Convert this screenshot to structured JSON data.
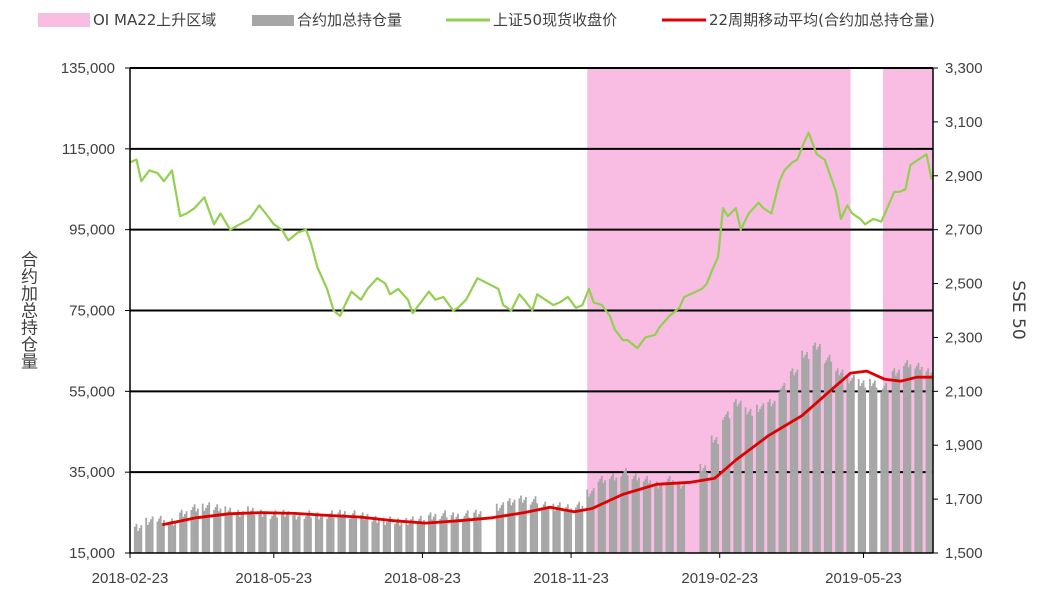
{
  "chart_data": {
    "type": "bar+line",
    "x_start": "2018-02-23",
    "x_end": "2019-07-05",
    "x_tick_labels": [
      "2018-02-23",
      "2018-05-23",
      "2018-08-23",
      "2018-11-23",
      "2019-02-23",
      "2019-05-23"
    ],
    "left_axis": {
      "label": "合约加总持仓量",
      "ylim": [
        15000,
        135000
      ],
      "ticks": [
        15000,
        35000,
        55000,
        75000,
        95000,
        115000,
        135000
      ],
      "tick_labels": [
        "15,000",
        "35,000",
        "55,000",
        "75,000",
        "95,000",
        "115,000",
        "135,000"
      ]
    },
    "right_axis": {
      "label": "SSE 50",
      "ylim": [
        1500,
        3300
      ],
      "ticks": [
        1500,
        1700,
        1900,
        2100,
        2300,
        2500,
        2700,
        2900,
        3100,
        3300
      ],
      "tick_labels": [
        "1,500",
        "1,700",
        "1,900",
        "2,100",
        "2,300",
        "2,500",
        "2,700",
        "2,900",
        "3,100",
        "3,300"
      ]
    },
    "grid": "horizontal",
    "legend_position": "top",
    "legend": [
      {
        "label": "OI MA22上升区域",
        "kind": "area",
        "color": "#f9bde4"
      },
      {
        "label": "合约加总持仓量",
        "kind": "bar",
        "color": "#a6a6a6"
      },
      {
        "label": "上证50现货收盘价",
        "kind": "line",
        "color": "#92d050"
      },
      {
        "label": "22周期移动平均(合约加总持仓量)",
        "kind": "line",
        "color": "#e00000"
      }
    ],
    "shaded_regions": [
      {
        "start": "2018-12-03",
        "end": "2019-05-15"
      },
      {
        "start": "2019-06-04",
        "end": "2019-07-05"
      }
    ],
    "series": [
      {
        "name": "合约加总持仓量",
        "type": "bar",
        "color": "#a6a6a6",
        "points": [
          [
            "2018-02-26",
            21500
          ],
          [
            "2018-03-05",
            23000
          ],
          [
            "2018-03-12",
            23500
          ],
          [
            "2018-03-19",
            22500
          ],
          [
            "2018-03-26",
            25000
          ],
          [
            "2018-04-02",
            26000
          ],
          [
            "2018-04-09",
            26500
          ],
          [
            "2018-04-16",
            26000
          ],
          [
            "2018-04-23",
            25500
          ],
          [
            "2018-04-30",
            25000
          ],
          [
            "2018-05-07",
            25500
          ],
          [
            "2018-05-14",
            25000
          ],
          [
            "2018-05-21",
            24500
          ],
          [
            "2018-05-28",
            25000
          ],
          [
            "2018-06-04",
            24000
          ],
          [
            "2018-06-11",
            24500
          ],
          [
            "2018-06-18",
            24000
          ],
          [
            "2018-06-25",
            24500
          ],
          [
            "2018-07-02",
            25000
          ],
          [
            "2018-07-09",
            24500
          ],
          [
            "2018-07-16",
            24000
          ],
          [
            "2018-07-23",
            23500
          ],
          [
            "2018-07-30",
            23000
          ],
          [
            "2018-08-06",
            22500
          ],
          [
            "2018-08-13",
            23000
          ],
          [
            "2018-08-20",
            23500
          ],
          [
            "2018-08-27",
            24000
          ],
          [
            "2018-09-03",
            24500
          ],
          [
            "2018-09-10",
            24000
          ],
          [
            "2018-09-17",
            24500
          ],
          [
            "2018-09-24",
            25000
          ],
          [
            "2018-10-08",
            26500
          ],
          [
            "2018-10-15",
            27500
          ],
          [
            "2018-10-22",
            28500
          ],
          [
            "2018-10-29",
            28000
          ],
          [
            "2018-11-05",
            27000
          ],
          [
            "2018-11-12",
            26500
          ],
          [
            "2018-11-19",
            26000
          ],
          [
            "2018-11-26",
            27000
          ],
          [
            "2018-12-03",
            30000
          ],
          [
            "2018-12-10",
            33000
          ],
          [
            "2018-12-17",
            34000
          ],
          [
            "2018-12-24",
            35000
          ],
          [
            "2018-12-31",
            34000
          ],
          [
            "2019-01-07",
            33000
          ],
          [
            "2019-01-14",
            32000
          ],
          [
            "2019-01-21",
            33000
          ],
          [
            "2019-01-28",
            32000
          ],
          [
            "2019-02-11",
            36000
          ],
          [
            "2019-02-18",
            43000
          ],
          [
            "2019-02-25",
            49000
          ],
          [
            "2019-03-04",
            52000
          ],
          [
            "2019-03-11",
            50000
          ],
          [
            "2019-03-18",
            51000
          ],
          [
            "2019-03-25",
            52000
          ],
          [
            "2019-04-01",
            56000
          ],
          [
            "2019-04-08",
            60000
          ],
          [
            "2019-04-15",
            64000
          ],
          [
            "2019-04-22",
            66000
          ],
          [
            "2019-04-29",
            63000
          ],
          [
            "2019-05-06",
            60000
          ],
          [
            "2019-05-13",
            58000
          ],
          [
            "2019-05-20",
            57000
          ],
          [
            "2019-05-27",
            57000
          ],
          [
            "2019-06-03",
            56000
          ],
          [
            "2019-06-10",
            60000
          ],
          [
            "2019-06-17",
            62000
          ],
          [
            "2019-06-24",
            61000
          ],
          [
            "2019-07-01",
            60000
          ]
        ]
      },
      {
        "name": "上证50现货收盘价",
        "type": "line",
        "axis": "right",
        "color": "#92d050",
        "points": [
          [
            "2018-02-23",
            2950
          ],
          [
            "2018-02-27",
            2960
          ],
          [
            "2018-03-02",
            2880
          ],
          [
            "2018-03-07",
            2920
          ],
          [
            "2018-03-12",
            2910
          ],
          [
            "2018-03-16",
            2880
          ],
          [
            "2018-03-21",
            2920
          ],
          [
            "2018-03-26",
            2750
          ],
          [
            "2018-03-30",
            2760
          ],
          [
            "2018-04-04",
            2780
          ],
          [
            "2018-04-10",
            2820
          ],
          [
            "2018-04-16",
            2720
          ],
          [
            "2018-04-20",
            2760
          ],
          [
            "2018-04-26",
            2700
          ],
          [
            "2018-05-02",
            2720
          ],
          [
            "2018-05-08",
            2740
          ],
          [
            "2018-05-14",
            2790
          ],
          [
            "2018-05-18",
            2760
          ],
          [
            "2018-05-23",
            2720
          ],
          [
            "2018-05-28",
            2700
          ],
          [
            "2018-06-01",
            2660
          ],
          [
            "2018-06-07",
            2690
          ],
          [
            "2018-06-12",
            2700
          ],
          [
            "2018-06-15",
            2650
          ],
          [
            "2018-06-19",
            2560
          ],
          [
            "2018-06-25",
            2480
          ],
          [
            "2018-06-29",
            2400
          ],
          [
            "2018-07-03",
            2380
          ],
          [
            "2018-07-06",
            2420
          ],
          [
            "2018-07-10",
            2470
          ],
          [
            "2018-07-16",
            2440
          ],
          [
            "2018-07-20",
            2480
          ],
          [
            "2018-07-26",
            2520
          ],
          [
            "2018-07-31",
            2500
          ],
          [
            "2018-08-03",
            2460
          ],
          [
            "2018-08-08",
            2480
          ],
          [
            "2018-08-14",
            2440
          ],
          [
            "2018-08-17",
            2390
          ],
          [
            "2018-08-22",
            2430
          ],
          [
            "2018-08-27",
            2470
          ],
          [
            "2018-08-31",
            2440
          ],
          [
            "2018-09-05",
            2450
          ],
          [
            "2018-09-11",
            2400
          ],
          [
            "2018-09-14",
            2410
          ],
          [
            "2018-09-19",
            2440
          ],
          [
            "2018-09-26",
            2520
          ],
          [
            "2018-10-09",
            2480
          ],
          [
            "2018-10-12",
            2420
          ],
          [
            "2018-10-17",
            2400
          ],
          [
            "2018-10-22",
            2460
          ],
          [
            "2018-10-25",
            2440
          ],
          [
            "2018-10-30",
            2400
          ],
          [
            "2018-11-02",
            2460
          ],
          [
            "2018-11-07",
            2440
          ],
          [
            "2018-11-12",
            2420
          ],
          [
            "2018-11-16",
            2430
          ],
          [
            "2018-11-21",
            2450
          ],
          [
            "2018-11-26",
            2410
          ],
          [
            "2018-11-30",
            2420
          ],
          [
            "2018-12-04",
            2480
          ],
          [
            "2018-12-07",
            2430
          ],
          [
            "2018-12-12",
            2420
          ],
          [
            "2018-12-17",
            2380
          ],
          [
            "2018-12-20",
            2330
          ],
          [
            "2018-12-25",
            2290
          ],
          [
            "2018-12-28",
            2290
          ],
          [
            "2019-01-03",
            2260
          ],
          [
            "2019-01-08",
            2300
          ],
          [
            "2019-01-14",
            2310
          ],
          [
            "2019-01-17",
            2340
          ],
          [
            "2019-01-23",
            2380
          ],
          [
            "2019-01-29",
            2410
          ],
          [
            "2019-02-01",
            2450
          ],
          [
            "2019-02-12",
            2480
          ],
          [
            "2019-02-15",
            2500
          ],
          [
            "2019-02-19",
            2560
          ],
          [
            "2019-02-22",
            2600
          ],
          [
            "2019-02-25",
            2780
          ],
          [
            "2019-02-28",
            2750
          ],
          [
            "2019-03-05",
            2780
          ],
          [
            "2019-03-08",
            2700
          ],
          [
            "2019-03-13",
            2760
          ],
          [
            "2019-03-19",
            2800
          ],
          [
            "2019-03-22",
            2780
          ],
          [
            "2019-03-27",
            2760
          ],
          [
            "2019-04-01",
            2880
          ],
          [
            "2019-04-04",
            2920
          ],
          [
            "2019-04-09",
            2950
          ],
          [
            "2019-04-12",
            2960
          ],
          [
            "2019-04-16",
            3020
          ],
          [
            "2019-04-19",
            3060
          ],
          [
            "2019-04-24",
            2980
          ],
          [
            "2019-04-29",
            2960
          ],
          [
            "2019-05-06",
            2840
          ],
          [
            "2019-05-09",
            2740
          ],
          [
            "2019-05-13",
            2790
          ],
          [
            "2019-05-16",
            2760
          ],
          [
            "2019-05-21",
            2740
          ],
          [
            "2019-05-24",
            2720
          ],
          [
            "2019-05-29",
            2740
          ],
          [
            "2019-06-03",
            2730
          ],
          [
            "2019-06-06",
            2770
          ],
          [
            "2019-06-11",
            2840
          ],
          [
            "2019-06-14",
            2840
          ],
          [
            "2019-06-18",
            2850
          ],
          [
            "2019-06-21",
            2940
          ],
          [
            "2019-06-26",
            2960
          ],
          [
            "2019-07-01",
            2980
          ],
          [
            "2019-07-04",
            2890
          ],
          [
            "2019-07-05",
            2900
          ]
        ]
      },
      {
        "name": "22周期移动平均(合约加总持仓量)",
        "type": "line",
        "axis": "left",
        "color": "#e00000",
        "points": [
          [
            "2018-03-15",
            22000
          ],
          [
            "2018-04-05",
            23700
          ],
          [
            "2018-04-25",
            24700
          ],
          [
            "2018-05-15",
            25000
          ],
          [
            "2018-06-05",
            24800
          ],
          [
            "2018-06-25",
            24300
          ],
          [
            "2018-07-15",
            23900
          ],
          [
            "2018-08-05",
            23000
          ],
          [
            "2018-08-25",
            22400
          ],
          [
            "2018-09-15",
            23000
          ],
          [
            "2018-10-05",
            23700
          ],
          [
            "2018-10-25",
            25000
          ],
          [
            "2018-11-10",
            26300
          ],
          [
            "2018-11-25",
            25200
          ],
          [
            "2018-12-06",
            26000
          ],
          [
            "2018-12-25",
            29500
          ],
          [
            "2019-01-15",
            32000
          ],
          [
            "2019-02-05",
            32500
          ],
          [
            "2019-02-20",
            33500
          ],
          [
            "2019-03-05",
            38000
          ],
          [
            "2019-03-25",
            44000
          ],
          [
            "2019-04-15",
            49000
          ],
          [
            "2019-05-02",
            55000
          ],
          [
            "2019-05-15",
            59500
          ],
          [
            "2019-05-25",
            60000
          ],
          [
            "2019-06-05",
            58000
          ],
          [
            "2019-06-15",
            57500
          ],
          [
            "2019-06-25",
            58500
          ],
          [
            "2019-07-05",
            58500
          ]
        ]
      }
    ]
  }
}
